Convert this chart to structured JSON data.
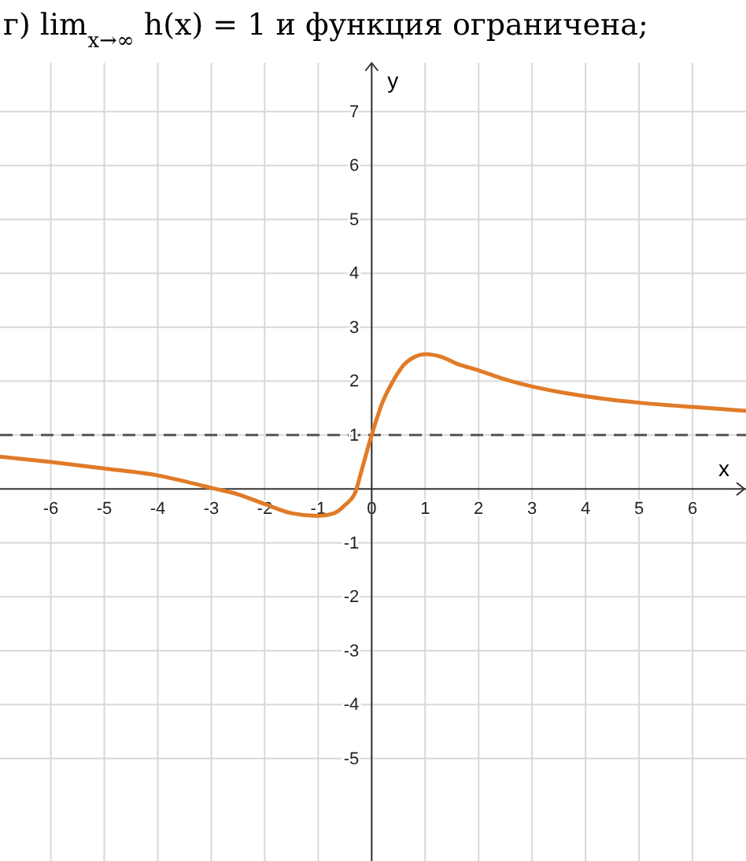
{
  "chart_data": {
    "type": "line",
    "title": "г) lim$_{x→∞}$ h(x) = 1 и функция ограничена;",
    "xlabel": "x",
    "ylabel": "y",
    "x": [
      -6.95,
      -6,
      -5,
      -4,
      -3,
      -2.5,
      -2,
      -1.5,
      -1,
      -0.7,
      -0.5,
      -0.3,
      -0.2,
      0,
      0.2,
      0.4,
      0.6,
      0.8,
      1,
      1.3,
      1.6,
      2,
      2.5,
      3,
      3.5,
      4,
      5,
      6,
      7
    ],
    "series": [
      {
        "color": "#e07b28",
        "values": [
          0.6,
          0.5,
          0.38,
          0.25,
          0.02,
          -0.1,
          -0.28,
          -0.45,
          -0.5,
          -0.45,
          -0.3,
          -0.05,
          0.3,
          1.0,
          1.6,
          2.0,
          2.3,
          2.45,
          2.5,
          2.45,
          2.32,
          2.2,
          2.03,
          1.9,
          1.8,
          1.72,
          1.6,
          1.52,
          1.45
        ]
      }
    ],
    "xlim": [
      -6.95,
      7
    ],
    "ylim": [
      -6.9,
      7.9
    ],
    "xticks": [
      -6,
      -5,
      -4,
      -3,
      -2,
      -1,
      0,
      1,
      2,
      3,
      4,
      5,
      6
    ],
    "yticks": [
      -5,
      -4,
      -3,
      -2,
      -1,
      1,
      2,
      3,
      4,
      5,
      6,
      7
    ],
    "ref_lines": [
      {
        "axis": "y",
        "value": 1,
        "color": "#555555",
        "line_style": "dashed"
      }
    ],
    "grid": true,
    "line_style": "solid",
    "marker": "none"
  }
}
